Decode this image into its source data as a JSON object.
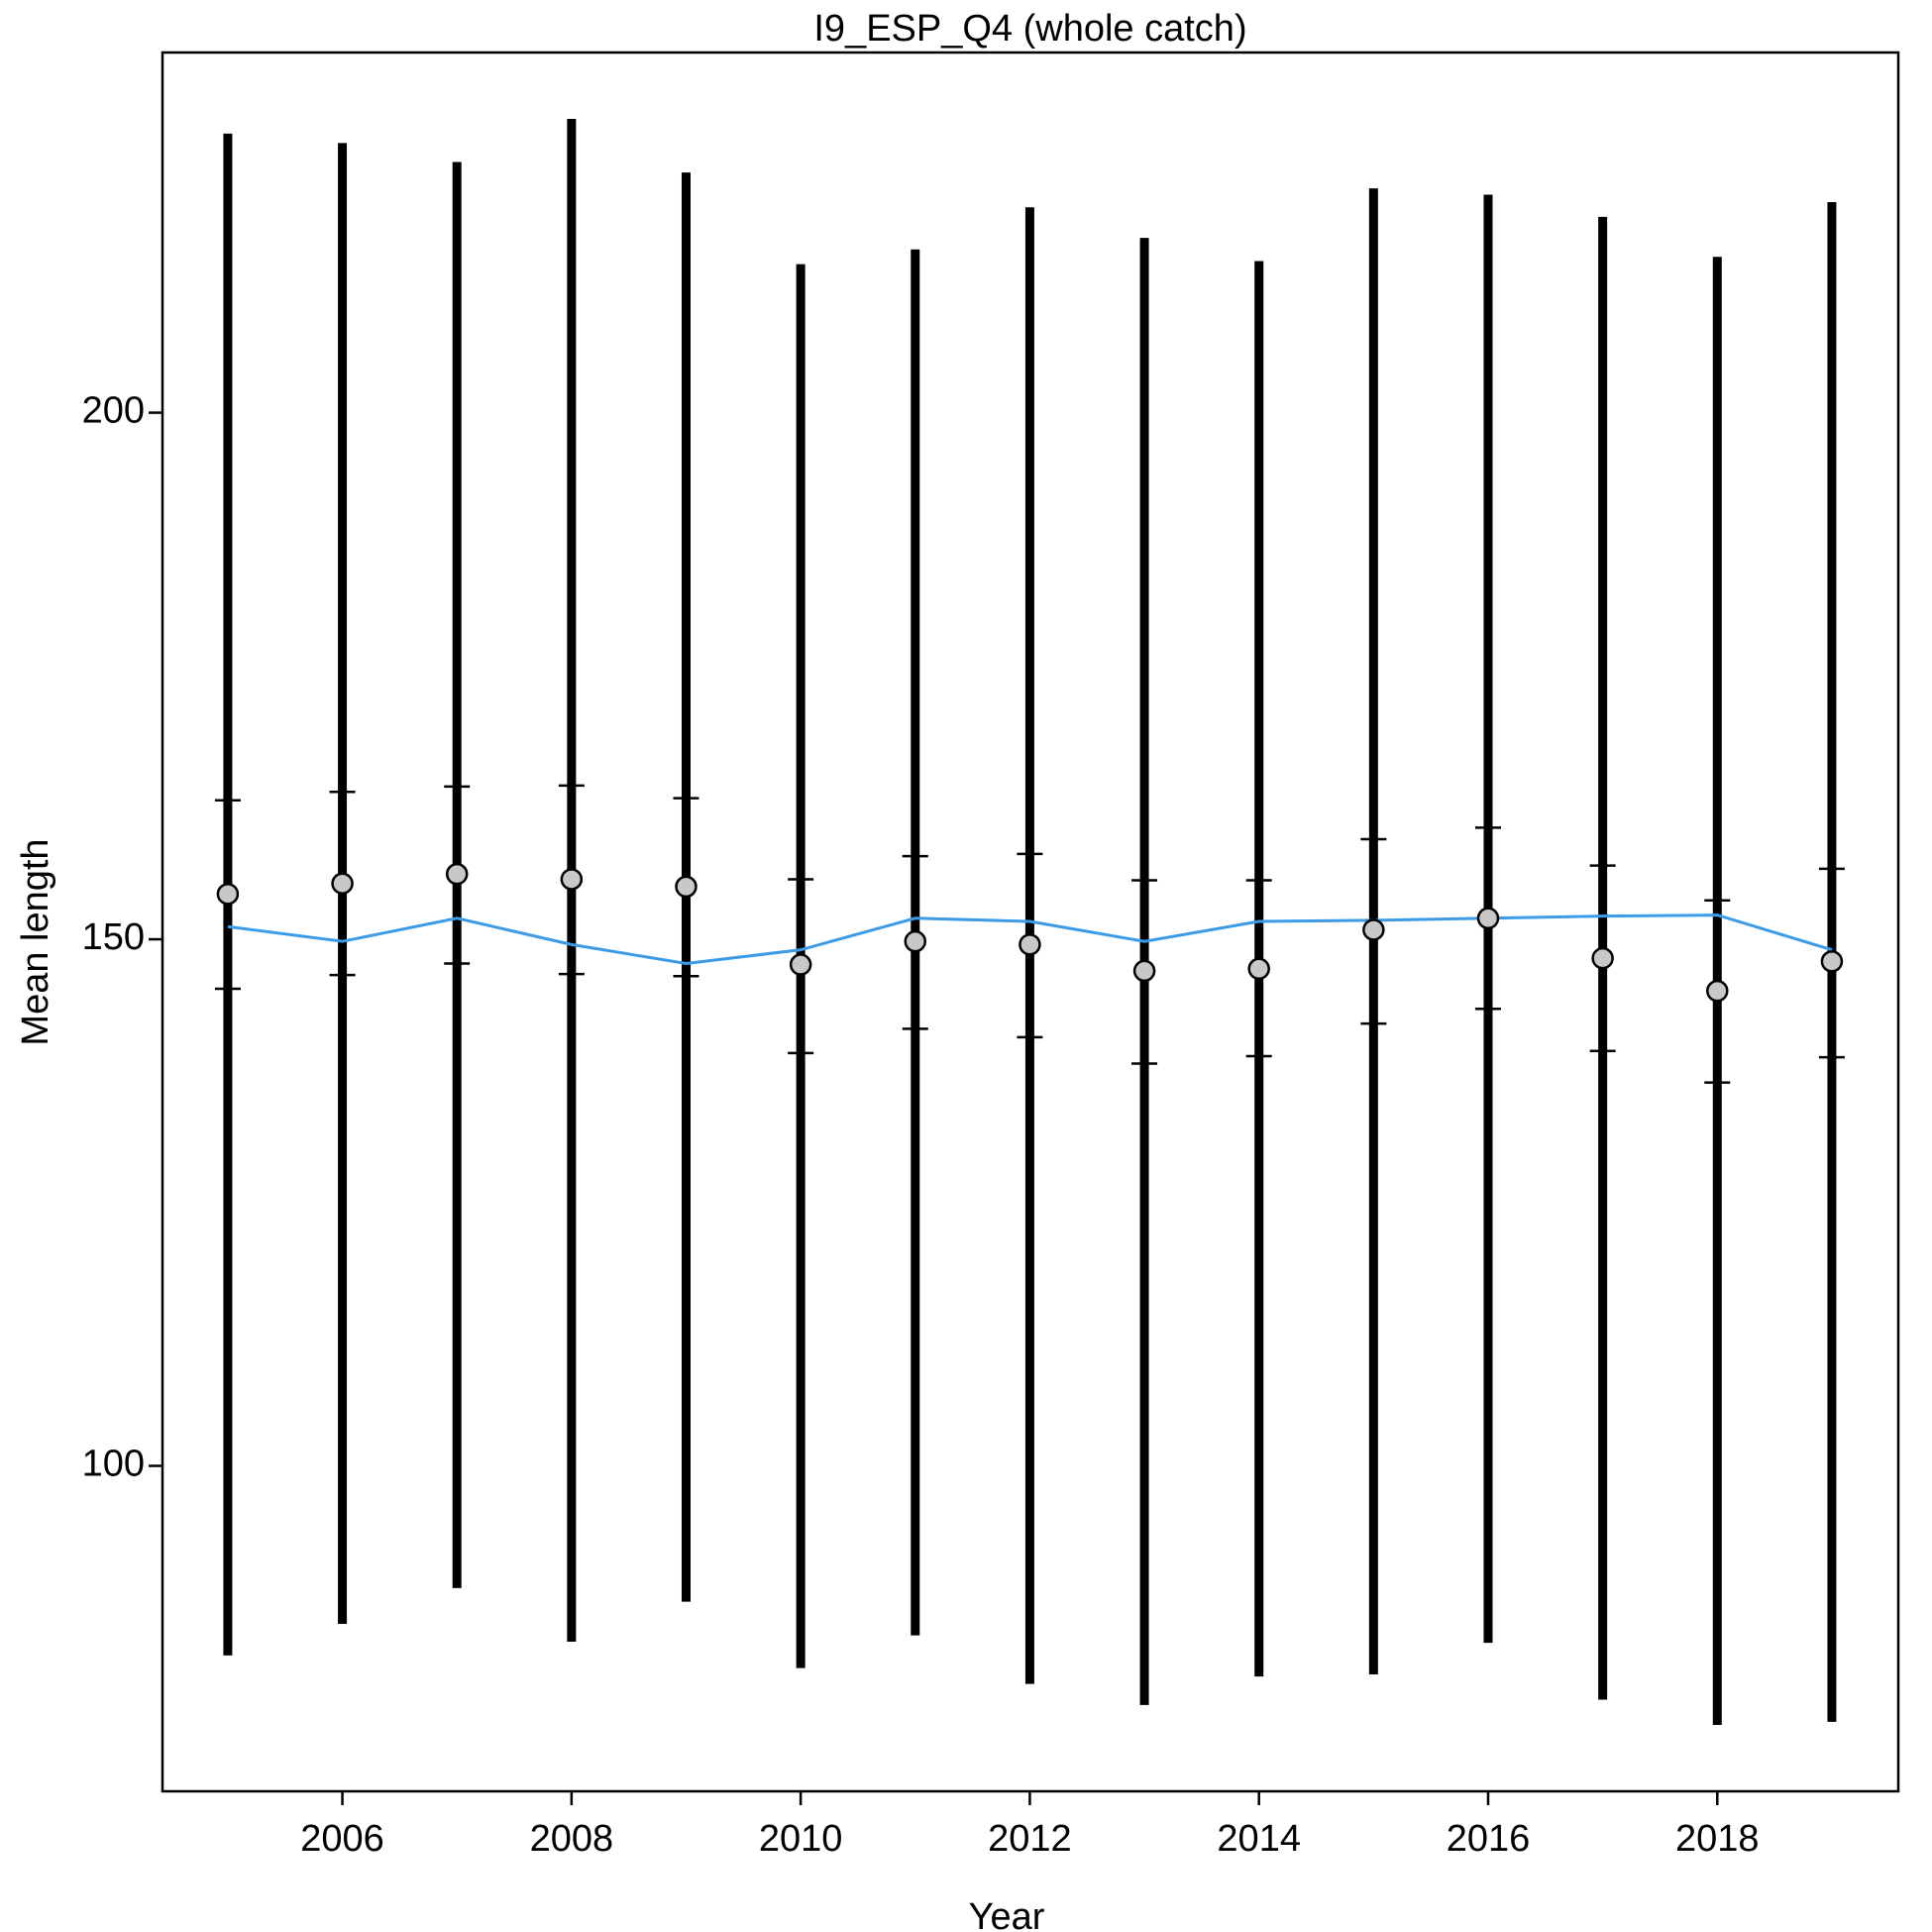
{
  "chart_data": {
    "type": "errorbar",
    "title": "I9_ESP_Q4 (whole catch)",
    "x_label": "Year",
    "y_label": "Mean length",
    "x": [
      2005,
      2006,
      2007,
      2008,
      2009,
      2010,
      2011,
      2012,
      2013,
      2014,
      2015,
      2016,
      2017,
      2018,
      2019
    ],
    "observed": [
      154.3,
      155.3,
      156.2,
      155.7,
      155.0,
      147.6,
      149.8,
      149.5,
      147.0,
      147.2,
      150.9,
      152.0,
      148.2,
      145.1,
      147.9
    ],
    "expected": [
      151.2,
      149.8,
      152.0,
      149.5,
      147.7,
      149.0,
      152.0,
      151.7,
      149.8,
      151.7,
      151.8,
      152.0,
      152.2,
      152.3,
      149.0
    ],
    "inner_upper": [
      163.2,
      164.0,
      164.5,
      164.6,
      163.4,
      155.7,
      157.9,
      158.1,
      155.6,
      155.6,
      159.5,
      160.6,
      157.0,
      153.7,
      156.7
    ],
    "inner_lower": [
      145.3,
      146.6,
      147.7,
      146.7,
      146.5,
      139.2,
      141.5,
      140.7,
      138.2,
      138.9,
      142.0,
      143.4,
      139.4,
      136.4,
      138.8
    ],
    "outer_upper": [
      226.5,
      225.6,
      223.8,
      227.9,
      222.8,
      214.1,
      215.5,
      219.5,
      216.6,
      214.4,
      221.3,
      220.7,
      218.6,
      214.8,
      220.0
    ],
    "outer_lower": [
      82.0,
      85.0,
      88.4,
      83.3,
      87.1,
      80.8,
      83.9,
      79.3,
      77.3,
      80.0,
      80.2,
      83.2,
      77.8,
      75.4,
      75.7
    ],
    "point_color": "#c8c8c8",
    "line_color": "#3c9be6",
    "bar_color": "#000000",
    "xlim": [
      2004.43,
      2019.58
    ],
    "xticks": [
      2006,
      2008,
      2010,
      2012,
      2014,
      2016,
      2018
    ],
    "ylim": [
      69.1,
      234.2
    ],
    "yticks": [
      100,
      150,
      200
    ]
  }
}
